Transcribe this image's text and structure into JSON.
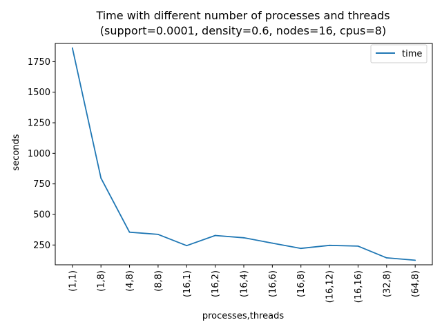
{
  "chart_data": {
    "type": "line",
    "title_line1": "Time with different number of processes and threads",
    "title_line2": "(support=0.0001, density=0.6, nodes=16, cpus=8)",
    "xlabel": "processes,threads",
    "ylabel": "seconds",
    "categories": [
      "(1,1)",
      "(1,8)",
      "(4,8)",
      "(8,8)",
      "(16,1)",
      "(16,2)",
      "(16,4)",
      "(16,6)",
      "(16,8)",
      "(16,12)",
      "(16,16)",
      "(32,8)",
      "(64,8)"
    ],
    "series": [
      {
        "name": "time",
        "color": "#1f77b4",
        "values": [
          1862,
          797,
          355,
          337,
          245,
          328,
          309,
          265,
          222,
          247,
          241,
          145,
          125
        ]
      }
    ],
    "ylim": [
      88,
      1899
    ],
    "yticks": [
      250,
      500,
      750,
      1000,
      1250,
      1500,
      1750
    ],
    "grid": false,
    "legend_position": "top-right"
  }
}
